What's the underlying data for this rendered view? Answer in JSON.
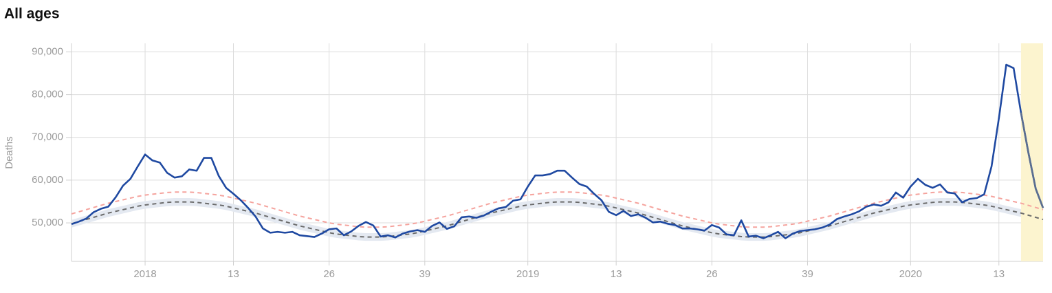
{
  "chart_data": {
    "type": "line",
    "title": "All ages",
    "y_label": "Deaths",
    "categories": [
      null,
      null,
      null,
      null,
      null,
      null,
      null,
      null,
      null,
      null,
      "2018",
      null,
      null,
      null,
      null,
      null,
      null,
      null,
      null,
      null,
      null,
      null,
      "13",
      null,
      null,
      null,
      null,
      null,
      null,
      null,
      null,
      null,
      null,
      null,
      null,
      "26",
      null,
      null,
      null,
      null,
      null,
      null,
      null,
      null,
      null,
      null,
      null,
      null,
      "39",
      null,
      null,
      null,
      null,
      null,
      null,
      null,
      null,
      null,
      null,
      null,
      null,
      null,
      "2019",
      null,
      null,
      null,
      null,
      null,
      null,
      null,
      null,
      null,
      null,
      null,
      "13",
      null,
      null,
      null,
      null,
      null,
      null,
      null,
      null,
      null,
      null,
      null,
      null,
      "26",
      null,
      null,
      null,
      null,
      null,
      null,
      null,
      null,
      null,
      null,
      null,
      null,
      "39",
      null,
      null,
      null,
      null,
      null,
      null,
      null,
      null,
      null,
      null,
      null,
      null,
      null,
      "2020",
      null,
      null,
      null,
      null,
      null,
      null,
      null,
      null,
      null,
      null,
      null,
      "13",
      null,
      null,
      null,
      null,
      null,
      null
    ],
    "series": [
      {
        "color": "#1f49a1",
        "dashed": false,
        "values": [
          49700,
          50300,
          51000,
          52500,
          53300,
          53800,
          56000,
          58700,
          60300,
          63200,
          66000,
          64600,
          64100,
          61700,
          60600,
          60900,
          62500,
          62200,
          65200,
          65200,
          61000,
          58200,
          56800,
          55300,
          53500,
          51500,
          48700,
          47700,
          47900,
          47700,
          47900,
          47100,
          46900,
          46700,
          47500,
          48500,
          48700,
          47100,
          48000,
          49300,
          50200,
          49400,
          46800,
          47100,
          46600,
          47500,
          48000,
          48300,
          47900,
          49300,
          50100,
          48600,
          49200,
          51300,
          51500,
          51200,
          51700,
          52600,
          53400,
          53700,
          55200,
          55500,
          58500,
          61100,
          61100,
          61400,
          62200,
          62200,
          60600,
          59100,
          58500,
          56800,
          55300,
          52600,
          51800,
          52800,
          51600,
          52000,
          51200,
          50100,
          50300,
          49800,
          49500,
          48700,
          48700,
          48500,
          48200,
          49500,
          48900,
          47300,
          47100,
          50600,
          46800,
          47000,
          46400,
          47100,
          47900,
          46400,
          47500,
          48100,
          48300,
          48500,
          48900,
          49600,
          50900,
          51500,
          52000,
          52700,
          53800,
          54300,
          54000,
          54800,
          57100,
          55900,
          58500,
          60300,
          58900,
          58200,
          59000,
          57100,
          56900,
          54800,
          55600,
          55800,
          56700,
          63200,
          74500,
          87000,
          86200,
          75800,
          66500,
          58000,
          53500
        ]
      },
      {
        "color": "#f5a39d",
        "dashed": true,
        "values": [
          52100,
          52600,
          53100,
          53600,
          54100,
          54600,
          55000,
          55400,
          55800,
          56200,
          56500,
          56700,
          56900,
          57100,
          57200,
          57200,
          57200,
          57100,
          56900,
          56700,
          56500,
          56200,
          55800,
          55400,
          55000,
          54600,
          54100,
          53600,
          53100,
          52600,
          52100,
          51600,
          51200,
          50800,
          50400,
          50000,
          49700,
          49500,
          49300,
          49100,
          49000,
          49000,
          49000,
          49100,
          49300,
          49500,
          49700,
          50000,
          50400,
          50800,
          51200,
          51600,
          52100,
          52600,
          53100,
          53600,
          54100,
          54600,
          55000,
          55400,
          55800,
          56200,
          56500,
          56700,
          56900,
          57100,
          57200,
          57200,
          57200,
          57100,
          56900,
          56700,
          56500,
          56200,
          55800,
          55400,
          55000,
          54600,
          54100,
          53600,
          53100,
          52600,
          52100,
          51600,
          51200,
          50800,
          50400,
          50000,
          49700,
          49500,
          49300,
          49100,
          49000,
          49000,
          49000,
          49100,
          49300,
          49500,
          49700,
          50000,
          50400,
          50800,
          51200,
          51600,
          52100,
          52600,
          53100,
          53600,
          54100,
          54600,
          55000,
          55400,
          55800,
          56200,
          56500,
          56700,
          56900,
          57100,
          57200,
          57200,
          57200,
          57100,
          56900,
          56700,
          56500,
          56200,
          55800,
          55400,
          55000,
          54600,
          54100,
          53600,
          53100
        ]
      },
      {
        "color": "#6b6b6b",
        "dashed": true,
        "values": [
          49800,
          50300,
          50800,
          51300,
          51800,
          52300,
          52700,
          53100,
          53500,
          53900,
          54200,
          54400,
          54600,
          54800,
          54900,
          54900,
          54900,
          54800,
          54600,
          54400,
          54200,
          53900,
          53500,
          53100,
          52700,
          52300,
          51800,
          51300,
          50800,
          50300,
          49800,
          49300,
          48900,
          48500,
          48100,
          47700,
          47400,
          47200,
          47000,
          46800,
          46700,
          46700,
          46700,
          46800,
          47000,
          47200,
          47400,
          47700,
          48100,
          48500,
          48900,
          49300,
          49800,
          50300,
          50800,
          51300,
          51800,
          52300,
          52700,
          53100,
          53500,
          53900,
          54200,
          54400,
          54600,
          54800,
          54900,
          54900,
          54900,
          54800,
          54600,
          54400,
          54200,
          53900,
          53500,
          53100,
          52700,
          52300,
          51800,
          51300,
          50800,
          50300,
          49800,
          49300,
          48900,
          48500,
          48100,
          47700,
          47400,
          47200,
          47000,
          46800,
          46700,
          46700,
          46700,
          46800,
          47000,
          47200,
          47400,
          47700,
          48100,
          48500,
          48900,
          49300,
          49800,
          50300,
          50800,
          51300,
          51800,
          52300,
          52700,
          53100,
          53500,
          53900,
          54200,
          54400,
          54600,
          54800,
          54900,
          54900,
          54900,
          54800,
          54600,
          54400,
          54200,
          53900,
          53500,
          53100,
          52700,
          52300,
          51800,
          51300,
          50800
        ]
      }
    ],
    "band": {
      "color": "#e4e9f1",
      "lower": [
        48900,
        49400,
        49900,
        50400,
        50900,
        51400,
        51800,
        52200,
        52600,
        53000,
        53300,
        53500,
        53700,
        53900,
        54000,
        54000,
        54000,
        53900,
        53700,
        53500,
        53300,
        53000,
        52600,
        52200,
        51800,
        51400,
        50900,
        50400,
        49900,
        49400,
        48900,
        48400,
        48000,
        47600,
        47200,
        46800,
        46500,
        46300,
        46100,
        45900,
        45800,
        45800,
        45800,
        45900,
        46100,
        46300,
        46500,
        46800,
        47200,
        47600,
        48000,
        48400,
        48900,
        49400,
        49900,
        50400,
        50900,
        51400,
        51800,
        52200,
        52600,
        53000,
        53300,
        53500,
        53700,
        53900,
        54000,
        54000,
        54000,
        53900,
        53700,
        53500,
        53300,
        53000,
        52600,
        52200,
        51800,
        51400,
        50900,
        50400,
        49900,
        49400,
        48900,
        48400,
        48000,
        47600,
        47200,
        46800,
        46500,
        46300,
        46100,
        45900,
        45800,
        45800,
        45800,
        45900,
        46100,
        46300,
        46500,
        46800,
        47200,
        47600,
        48000,
        48400,
        48900,
        49400,
        49900,
        50400,
        50900,
        51400,
        51800,
        52200,
        52600,
        53000,
        53300,
        53500,
        53700,
        53900,
        54000,
        54000,
        54000,
        53900,
        53700,
        53500,
        53300,
        53000,
        52600,
        52200,
        51800,
        51400,
        50900,
        50400,
        49900
      ],
      "upper": [
        50700,
        51200,
        51700,
        52200,
        52700,
        53200,
        53600,
        54000,
        54400,
        54800,
        55100,
        55300,
        55500,
        55700,
        55800,
        55800,
        55800,
        55700,
        55500,
        55300,
        55100,
        54800,
        54400,
        54000,
        53600,
        53200,
        52700,
        52200,
        51700,
        51200,
        50700,
        50200,
        49800,
        49400,
        49000,
        48600,
        48300,
        48100,
        47900,
        47700,
        47600,
        47600,
        47600,
        47700,
        47900,
        48100,
        48300,
        48600,
        49000,
        49400,
        49800,
        50200,
        50700,
        51200,
        51700,
        52200,
        52700,
        53200,
        53600,
        54000,
        54400,
        54800,
        55100,
        55300,
        55500,
        55700,
        55800,
        55800,
        55800,
        55700,
        55500,
        55300,
        55100,
        54800,
        54400,
        54000,
        53600,
        53200,
        52700,
        52200,
        51700,
        51200,
        50700,
        50200,
        49800,
        49400,
        49000,
        48600,
        48300,
        48100,
        47900,
        47700,
        47600,
        47600,
        47600,
        47700,
        47900,
        48100,
        48300,
        48600,
        49000,
        49400,
        49800,
        50200,
        50700,
        51200,
        51700,
        52200,
        52700,
        53200,
        53600,
        54000,
        54400,
        54800,
        55100,
        55300,
        55500,
        55700,
        55800,
        55800,
        55800,
        55700,
        55500,
        55300,
        55100,
        54800,
        54400,
        54000,
        53600,
        53200,
        52700,
        52200,
        51700
      ]
    },
    "highlight_weeks": 3,
    "highlight_color": "#fcf4cf",
    "highlight_line_color": "#5b6e90",
    "ylim": [
      41000,
      92000
    ],
    "yticks": [
      {
        "value": 50000,
        "label": "50,000"
      },
      {
        "value": 60000,
        "label": "60,000"
      },
      {
        "value": 70000,
        "label": "70,000"
      },
      {
        "value": 80000,
        "label": "80,000"
      },
      {
        "value": 90000,
        "label": "90,000"
      }
    ],
    "grid": true
  }
}
